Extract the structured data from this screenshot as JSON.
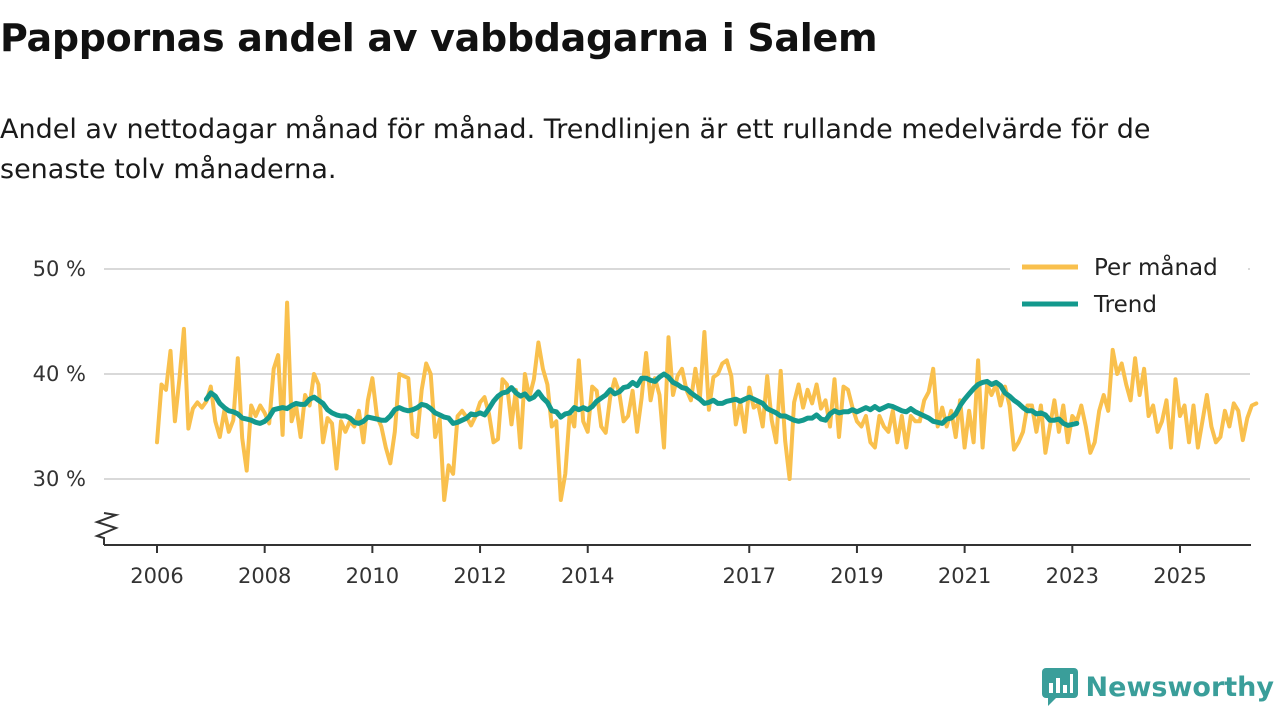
{
  "header": {
    "title": "Pappornas andel av vabbdagarna i Salem",
    "subtitle": "Andel av nettodagar månad för månad. Trendlinjen är ett rullande medelvärde för de senaste tolv månaderna."
  },
  "brand": {
    "name": "Newsworthy",
    "icon": "newsworthy-logo-icon"
  },
  "colors": {
    "monthly": "#F9C04D",
    "trend": "#13998D",
    "grid": "#d9d9d9",
    "axis": "#333333",
    "brand": "#3A9E9A"
  },
  "chart_data": {
    "type": "line",
    "title": "Pappornas andel av vabbdagarna i Salem",
    "xlabel": "",
    "ylabel": "",
    "ylim": [
      24,
      52
    ],
    "y_ticks": [
      30,
      40,
      50
    ],
    "y_tick_labels": [
      "30 %",
      "40 %",
      "50 %"
    ],
    "x_ticks": [
      2006,
      2008,
      2010,
      2012,
      2014,
      2017,
      2019,
      2021,
      2023,
      2025
    ],
    "x_tick_labels": [
      "2006",
      "2008",
      "2010",
      "2012",
      "2014",
      "2017",
      "2019",
      "2021",
      "2023",
      "2025"
    ],
    "xlim": [
      2006,
      2025.4
    ],
    "legend_position": "top-right",
    "series": [
      {
        "name": "Per månad",
        "x_start": 2006.0,
        "x_step": 0.083333,
        "values": [
          33.5,
          39,
          38.5,
          42.2,
          35.5,
          39.5,
          44.3,
          34.8,
          36.7,
          37.3,
          36.8,
          37.4,
          38.8,
          35.5,
          34,
          36.5,
          34.5,
          35.6,
          41.5,
          33.9,
          30.8,
          37,
          36,
          37,
          36.3,
          35.3,
          40.5,
          41.8,
          34.2,
          46.8,
          35.5,
          37,
          34,
          38,
          37,
          40,
          39,
          33.5,
          35.8,
          35.3,
          31,
          35.5,
          34.5,
          35.5,
          35,
          36.5,
          33.5,
          37.5,
          39.6,
          36,
          35,
          33,
          31.5,
          34.5,
          40,
          39.8,
          39.6,
          34.3,
          34,
          38.5,
          41,
          40,
          34,
          35.7,
          28,
          31.3,
          30.5,
          36,
          36.5,
          35.9,
          35.1,
          36,
          37.3,
          37.8,
          36.2,
          33.5,
          33.8,
          39.5,
          39,
          35.2,
          38.5,
          33,
          40,
          37.8,
          39.5,
          43,
          40.5,
          39,
          35,
          35.5,
          28,
          30.5,
          36.4,
          35,
          41.3,
          35.5,
          34.5,
          38.8,
          38.4,
          35,
          34.4,
          37.8,
          39.5,
          38.3,
          35.5,
          36,
          38.4,
          34.5,
          37.7,
          42,
          37.5,
          39.6,
          38,
          33,
          43.5,
          38,
          39.8,
          40.5,
          38.5,
          37.5,
          40.5,
          37.7,
          44,
          36.6,
          39.7,
          40,
          41,
          41.3,
          39.8,
          35.2,
          37.3,
          34.5,
          38.7,
          36.8,
          37.1,
          35,
          39.8,
          35.6,
          33.5,
          40.3,
          33.6,
          30,
          37.3,
          39,
          36.8,
          38.5,
          37.2,
          39,
          36.7,
          37.5,
          35,
          39.5,
          34,
          38.8,
          38.5,
          36.8,
          35.5,
          35,
          36,
          33.5,
          33,
          36,
          35,
          34.5,
          36.5,
          33.5,
          36,
          33,
          36,
          35.5,
          35.5,
          37.5,
          38.3,
          40.5,
          35,
          36.8,
          35,
          36.5,
          34,
          37.5,
          33,
          36.5,
          33.5,
          41.3,
          33,
          39,
          38,
          39,
          37,
          38.8,
          37,
          32.8,
          33.5,
          34.5,
          37,
          37,
          34.5,
          37,
          32.5,
          35,
          37.5,
          34.5,
          37,
          33.5,
          36,
          35.5,
          37,
          35,
          32.5,
          33.5,
          36.5,
          38,
          36.5,
          42.3,
          40,
          41,
          39,
          37.5,
          41.5,
          38,
          40.5,
          36,
          37,
          34.5,
          35.5,
          37.5,
          33,
          39.5,
          36,
          37,
          33.5,
          37,
          33,
          35.5,
          38,
          35,
          33.5,
          34,
          36.5,
          35,
          37.2,
          36.5,
          33.7,
          35.8,
          37,
          37.2
        ]
      },
      {
        "name": "Trend",
        "x_start": 2006.917,
        "x_step": 0.083333,
        "values": [
          37.6,
          38.2,
          37.9,
          37.2,
          36.8,
          36.5,
          36.4,
          36.2,
          35.8,
          35.7,
          35.6,
          35.4,
          35.3,
          35.5,
          35.9,
          36.6,
          36.7,
          36.8,
          36.7,
          37,
          37.2,
          37.1,
          37.1,
          37.6,
          37.8,
          37.5,
          37.2,
          36.6,
          36.3,
          36.1,
          36,
          36,
          35.8,
          35.4,
          35.3,
          35.5,
          35.9,
          35.8,
          35.7,
          35.6,
          35.6,
          36,
          36.6,
          36.8,
          36.6,
          36.5,
          36.6,
          36.8,
          37.1,
          37,
          36.7,
          36.3,
          36.1,
          35.9,
          35.8,
          35.3,
          35.4,
          35.6,
          35.8,
          36.2,
          36.1,
          36.3,
          36.1,
          36.7,
          37.4,
          37.9,
          38.2,
          38.3,
          38.7,
          38.2,
          37.9,
          38.1,
          37.6,
          37.8,
          38.3,
          37.7,
          37.3,
          36.5,
          36.4,
          35.9,
          36.2,
          36.3,
          36.8,
          36.6,
          36.8,
          36.6,
          36.9,
          37.4,
          37.7,
          38,
          38.5,
          38.1,
          38.3,
          38.7,
          38.8,
          39.2,
          38.9,
          39.6,
          39.6,
          39.4,
          39.3,
          39.7,
          40,
          39.7,
          39.2,
          39,
          38.7,
          38.6,
          38.2,
          37.9,
          37.6,
          37.2,
          37.3,
          37.5,
          37.2,
          37.2,
          37.4,
          37.5,
          37.6,
          37.4,
          37.6,
          37.8,
          37.6,
          37.4,
          37.2,
          36.7,
          36.5,
          36.3,
          36,
          36,
          35.8,
          35.6,
          35.5,
          35.6,
          35.8,
          35.8,
          36.1,
          35.7,
          35.6,
          36.2,
          36.5,
          36.3,
          36.4,
          36.4,
          36.6,
          36.4,
          36.6,
          36.8,
          36.6,
          36.9,
          36.6,
          36.8,
          37,
          36.9,
          36.7,
          36.5,
          36.4,
          36.7,
          36.4,
          36.2,
          36,
          35.8,
          35.5,
          35.4,
          35.3,
          35.7,
          35.8,
          36.2,
          37,
          37.6,
          38.1,
          38.6,
          39,
          39.2,
          39.3,
          39,
          39.2,
          38.9,
          38.2,
          37.9,
          37.5,
          37.2,
          36.8,
          36.5,
          36.5,
          36.2,
          36.3,
          36.1,
          35.6,
          35.6,
          35.7,
          35.3,
          35.1,
          35.2,
          35.3
        ]
      }
    ]
  }
}
